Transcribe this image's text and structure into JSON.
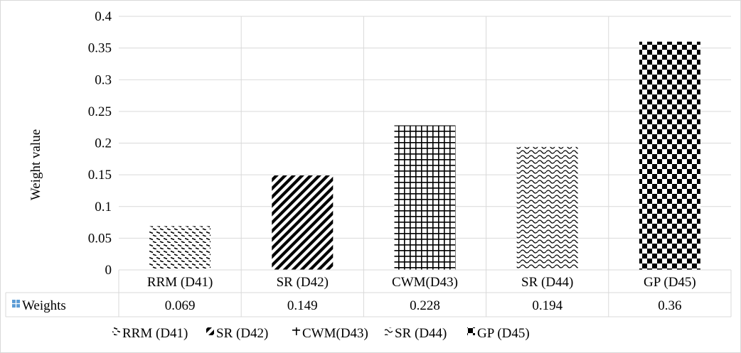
{
  "chart_data": {
    "type": "bar",
    "title": "",
    "xlabel": "",
    "ylabel": "Weight value",
    "ylim": [
      0,
      0.4
    ],
    "y_ticks": [
      "0",
      "0.05",
      "0.1",
      "0.15",
      "0.2",
      "0.25",
      "0.3",
      "0.35",
      "0.4"
    ],
    "categories": [
      "RRM (D41)",
      "SR (D42)",
      "CWM(D43)",
      "SR (D44)",
      "GP (D45)"
    ],
    "series": [
      {
        "name": "Weights",
        "values": [
          0.069,
          0.149,
          0.228,
          0.194,
          0.36
        ]
      }
    ],
    "value_labels": [
      "0.069",
      "0.149",
      "0.228",
      "0.194",
      "0.36"
    ],
    "patterns": [
      "dashes",
      "diagonal",
      "grid",
      "waves",
      "checker"
    ],
    "legend": {
      "placement": "bottom",
      "entries": [
        "RRM (D41)",
        "SR (D42)",
        "CWM(D43)",
        "SR (D44)",
        "GP (D45)"
      ]
    },
    "grid": true,
    "data_table": true,
    "colors": {
      "bar_ink": "#000000",
      "grid": "#d9d9d9",
      "table_key": "#5b9bd5"
    }
  }
}
